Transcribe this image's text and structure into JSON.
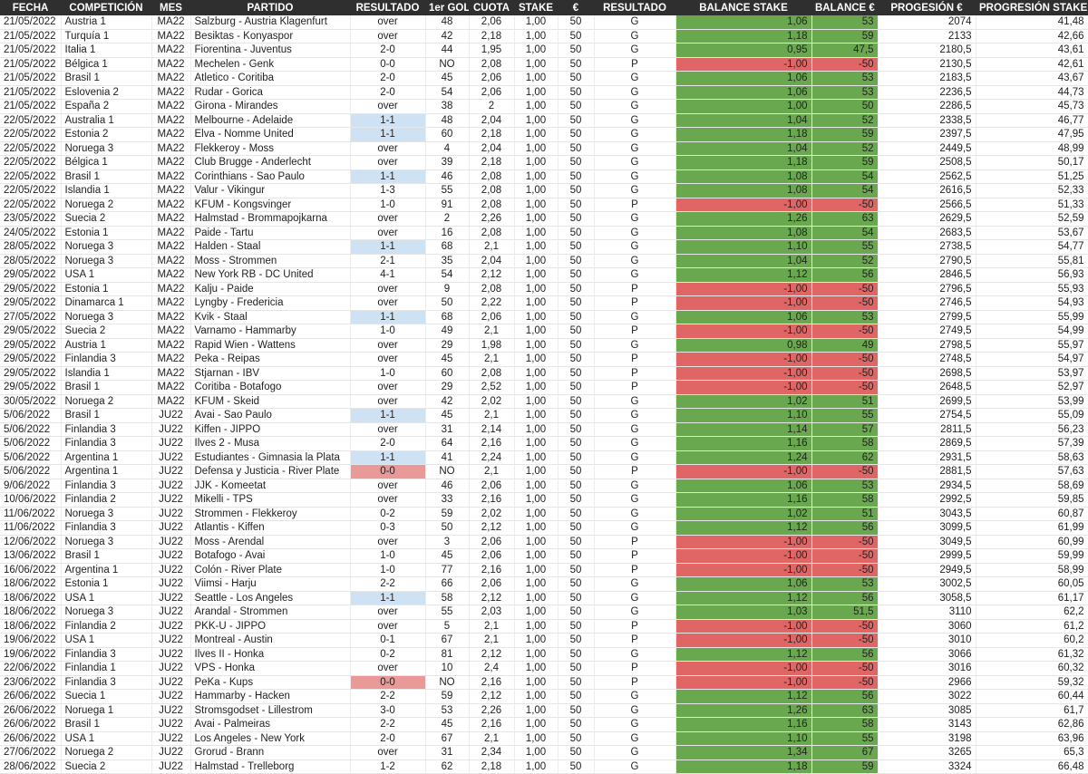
{
  "headers": [
    "FECHA",
    "COMPETICIÓN",
    "MES",
    "PARTIDO",
    "RESULTADO",
    "1er GOL",
    "CUOTA",
    "STAKE",
    "€",
    "RESULTADO",
    "BALANCE STAKE",
    "BALANCE €",
    "PROGESIÓN €",
    "PROGRESIÓN STAKE"
  ],
  "colors": {
    "header_bg": "#2f2f2f",
    "win": "#6aa84f",
    "loss": "#e06666",
    "score_blue": "#cfe2f3",
    "score_red": "#ea9999"
  },
  "rows": [
    [
      "21/05/2022",
      "Austria 1",
      "MA22",
      "Salzburg - Austria Klagenfurt",
      "over",
      "48",
      "2,06",
      "1,00",
      "50",
      "G",
      "1,06",
      "53",
      "2074",
      "41,48",
      ""
    ],
    [
      "21/05/2022",
      "Turquía 1",
      "MA22",
      "Besiktas - Konyaspor",
      "over",
      "42",
      "2,18",
      "1,00",
      "50",
      "G",
      "1,18",
      "59",
      "2133",
      "42,66",
      ""
    ],
    [
      "21/05/2022",
      "Italia 1",
      "MA22",
      "Fiorentina - Juventus",
      "2-0",
      "44",
      "1,95",
      "1,00",
      "50",
      "G",
      "0,95",
      "47,5",
      "2180,5",
      "43,61",
      ""
    ],
    [
      "21/05/2022",
      "Bélgica 1",
      "MA22",
      "Mechelen - Genk",
      "0-0",
      "NO",
      "2,08",
      "1,00",
      "50",
      "P",
      "-1,00",
      "-50",
      "2130,5",
      "42,61",
      ""
    ],
    [
      "21/05/2022",
      "Brasil 1",
      "MA22",
      "Atletico - Coritiba",
      "2-0",
      "45",
      "2,06",
      "1,00",
      "50",
      "G",
      "1,06",
      "53",
      "2183,5",
      "43,67",
      ""
    ],
    [
      "21/05/2022",
      "Eslovenia 2",
      "MA22",
      "Rudar - Gorica",
      "2-0",
      "54",
      "2,06",
      "1,00",
      "50",
      "G",
      "1,06",
      "53",
      "2236,5",
      "44,73",
      ""
    ],
    [
      "21/05/2022",
      "España 2",
      "MA22",
      "Girona - Mirandes",
      "over",
      "38",
      "2",
      "1,00",
      "50",
      "G",
      "1,00",
      "50",
      "2286,5",
      "45,73",
      ""
    ],
    [
      "22/05/2022",
      "Australia 1",
      "MA22",
      "Melbourne - Adelaide",
      "1-1",
      "48",
      "2,04",
      "1,00",
      "50",
      "G",
      "1,04",
      "52",
      "2338,5",
      "46,77",
      "b"
    ],
    [
      "22/05/2022",
      "Estonia 2",
      "MA22",
      "Elva - Nomme United",
      "1-1",
      "60",
      "2,18",
      "1,00",
      "50",
      "G",
      "1,18",
      "59",
      "2397,5",
      "47,95",
      "b"
    ],
    [
      "22/05/2022",
      "Noruega 3",
      "MA22",
      "Flekkeroy - Moss",
      "over",
      "4",
      "2,04",
      "1,00",
      "50",
      "G",
      "1,04",
      "52",
      "2449,5",
      "48,99",
      ""
    ],
    [
      "22/05/2022",
      "Bélgica 1",
      "MA22",
      "Club Brugge - Anderlecht",
      "over",
      "39",
      "2,18",
      "1,00",
      "50",
      "G",
      "1,18",
      "59",
      "2508,5",
      "50,17",
      ""
    ],
    [
      "22/05/2022",
      "Brasil 1",
      "MA22",
      "Corinthians - Sao Paulo",
      "1-1",
      "46",
      "2,08",
      "1,00",
      "50",
      "G",
      "1,08",
      "54",
      "2562,5",
      "51,25",
      "b"
    ],
    [
      "22/05/2022",
      "Islandia 1",
      "MA22",
      "Valur - Vikingur",
      "1-3",
      "55",
      "2,08",
      "1,00",
      "50",
      "G",
      "1,08",
      "54",
      "2616,5",
      "52,33",
      ""
    ],
    [
      "22/05/2022",
      "Noruega 2",
      "MA22",
      "KFUM - Kongsvinger",
      "1-0",
      "91",
      "2,08",
      "1,00",
      "50",
      "P",
      "-1,00",
      "-50",
      "2566,5",
      "51,33",
      ""
    ],
    [
      "23/05/2022",
      "Suecia 2",
      "MA22",
      "Halmstad - Brommapojkarna",
      "over",
      "2",
      "2,26",
      "1,00",
      "50",
      "G",
      "1,26",
      "63",
      "2629,5",
      "52,59",
      ""
    ],
    [
      "24/05/2022",
      "Estonia 1",
      "MA22",
      "Paide - Tartu",
      "over",
      "16",
      "2,08",
      "1,00",
      "50",
      "G",
      "1,08",
      "54",
      "2683,5",
      "53,67",
      ""
    ],
    [
      "28/05/2022",
      "Noruega 3",
      "MA22",
      "Halden - Staal",
      "1-1",
      "68",
      "2,1",
      "1,00",
      "50",
      "G",
      "1,10",
      "55",
      "2738,5",
      "54,77",
      "b"
    ],
    [
      "28/05/2022",
      "Noruega 3",
      "MA22",
      "Moss - Strommen",
      "2-1",
      "35",
      "2,04",
      "1,00",
      "50",
      "G",
      "1,04",
      "52",
      "2790,5",
      "55,81",
      ""
    ],
    [
      "29/05/2022",
      "USA 1",
      "MA22",
      "New York RB - DC United",
      "4-1",
      "54",
      "2,12",
      "1,00",
      "50",
      "G",
      "1,12",
      "56",
      "2846,5",
      "56,93",
      ""
    ],
    [
      "29/05/2022",
      "Estonia 1",
      "MA22",
      "Kalju - Paide",
      "over",
      "9",
      "2,08",
      "1,00",
      "50",
      "P",
      "-1,00",
      "-50",
      "2796,5",
      "55,93",
      ""
    ],
    [
      "29/05/2022",
      "Dinamarca 1",
      "MA22",
      "Lyngby - Fredericia",
      "over",
      "50",
      "2,22",
      "1,00",
      "50",
      "P",
      "-1,00",
      "-50",
      "2746,5",
      "54,93",
      ""
    ],
    [
      "27/05/2022",
      "Noruega 3",
      "MA22",
      "Kvik - Staal",
      "1-1",
      "68",
      "2,06",
      "1,00",
      "50",
      "G",
      "1,06",
      "53",
      "2799,5",
      "55,99",
      "b"
    ],
    [
      "29/05/2022",
      "Suecia 2",
      "MA22",
      "Varnamo - Hammarby",
      "1-0",
      "49",
      "2,1",
      "1,00",
      "50",
      "P",
      "-1,00",
      "-50",
      "2749,5",
      "54,99",
      ""
    ],
    [
      "29/05/2022",
      "Austria 1",
      "MA22",
      "Rapid Wien - Wattens",
      "over",
      "29",
      "1,98",
      "1,00",
      "50",
      "G",
      "0,98",
      "49",
      "2798,5",
      "55,97",
      ""
    ],
    [
      "29/05/2022",
      "Finlandia 3",
      "MA22",
      "Peka - Reipas",
      "over",
      "45",
      "2,1",
      "1,00",
      "50",
      "P",
      "-1,00",
      "-50",
      "2748,5",
      "54,97",
      ""
    ],
    [
      "29/05/2022",
      "Islandia 1",
      "MA22",
      "Stjarnan - IBV",
      "1-0",
      "60",
      "2,08",
      "1,00",
      "50",
      "P",
      "-1,00",
      "-50",
      "2698,5",
      "53,97",
      ""
    ],
    [
      "29/05/2022",
      "Brasil 1",
      "MA22",
      "Coritiba - Botafogo",
      "over",
      "29",
      "2,52",
      "1,00",
      "50",
      "P",
      "-1,00",
      "-50",
      "2648,5",
      "52,97",
      ""
    ],
    [
      "30/05/2022",
      "Noruega 2",
      "MA22",
      "KFUM - Skeid",
      "over",
      "42",
      "2,02",
      "1,00",
      "50",
      "G",
      "1,02",
      "51",
      "2699,5",
      "53,99",
      ""
    ],
    [
      "5/06/2022",
      "Brasil 1",
      "JU22",
      "Avai - Sao Paulo",
      "1-1",
      "45",
      "2,1",
      "1,00",
      "50",
      "G",
      "1,10",
      "55",
      "2754,5",
      "55,09",
      "b"
    ],
    [
      "5/06/2022",
      "Finlandia 3",
      "JU22",
      "Kiffen - JIPPO",
      "over",
      "31",
      "2,14",
      "1,00",
      "50",
      "G",
      "1,14",
      "57",
      "2811,5",
      "56,23",
      ""
    ],
    [
      "5/06/2022",
      "Finlandia 3",
      "JU22",
      "Ilves 2 - Musa",
      "2-0",
      "64",
      "2,16",
      "1,00",
      "50",
      "G",
      "1,16",
      "58",
      "2869,5",
      "57,39",
      ""
    ],
    [
      "5/06/2022",
      "Argentina 1",
      "JU22",
      "Estudiantes - Gimnasia la Plata",
      "1-1",
      "41",
      "2,24",
      "1,00",
      "50",
      "G",
      "1,24",
      "62",
      "2931,5",
      "58,63",
      "b"
    ],
    [
      "5/06/2022",
      "Argentina 1",
      "JU22",
      "Defensa y Justicia - River Plate",
      "0-0",
      "NO",
      "2,1",
      "1,00",
      "50",
      "P",
      "-1,00",
      "-50",
      "2881,5",
      "57,63",
      "r"
    ],
    [
      "9/06/2022",
      "Finlandia 3",
      "JU22",
      "JJK - Komeetat",
      "over",
      "46",
      "2,06",
      "1,00",
      "50",
      "G",
      "1,06",
      "53",
      "2934,5",
      "58,69",
      ""
    ],
    [
      "10/06/2022",
      "Finlandia 2",
      "JU22",
      "Mikelli - TPS",
      "over",
      "33",
      "2,16",
      "1,00",
      "50",
      "G",
      "1,16",
      "58",
      "2992,5",
      "59,85",
      ""
    ],
    [
      "11/06/2022",
      "Noruega 3",
      "JU22",
      "Strommen - Flekkeroy",
      "0-2",
      "59",
      "2,02",
      "1,00",
      "50",
      "G",
      "1,02",
      "51",
      "3043,5",
      "60,87",
      ""
    ],
    [
      "11/06/2022",
      "Finlandia 3",
      "JU22",
      "Atlantis - Kiffen",
      "0-3",
      "50",
      "2,12",
      "1,00",
      "50",
      "G",
      "1,12",
      "56",
      "3099,5",
      "61,99",
      ""
    ],
    [
      "12/06/2022",
      "Noruega 3",
      "JU22",
      "Moss - Arendal",
      "over",
      "3",
      "2,06",
      "1,00",
      "50",
      "P",
      "-1,00",
      "-50",
      "3049,5",
      "60,99",
      ""
    ],
    [
      "13/06/2022",
      "Brasil 1",
      "JU22",
      "Botafogo - Avai",
      "1-0",
      "45",
      "2,06",
      "1,00",
      "50",
      "P",
      "-1,00",
      "-50",
      "2999,5",
      "59,99",
      ""
    ],
    [
      "16/06/2022",
      "Argentina 1",
      "JU22",
      "Colón - River Plate",
      "1-0",
      "77",
      "2,16",
      "1,00",
      "50",
      "P",
      "-1,00",
      "-50",
      "2949,5",
      "58,99",
      ""
    ],
    [
      "18/06/2022",
      "Estonia 1",
      "JU22",
      "Viimsi - Harju",
      "2-2",
      "66",
      "2,06",
      "1,00",
      "50",
      "G",
      "1,06",
      "53",
      "3002,5",
      "60,05",
      ""
    ],
    [
      "18/06/2022",
      "USA 1",
      "JU22",
      "Seattle - Los Angeles",
      "1-1",
      "58",
      "2,12",
      "1,00",
      "50",
      "G",
      "1,12",
      "56",
      "3058,5",
      "61,17",
      "b"
    ],
    [
      "18/06/2022",
      "Noruega 3",
      "JU22",
      "Arandal - Strommen",
      "over",
      "55",
      "2,03",
      "1,00",
      "50",
      "G",
      "1,03",
      "51,5",
      "3110",
      "62,2",
      ""
    ],
    [
      "18/06/2022",
      "Finlandia 2",
      "JU22",
      "PKK-U - JIPPO",
      "over",
      "5",
      "2,1",
      "1,00",
      "50",
      "P",
      "-1,00",
      "-50",
      "3060",
      "61,2",
      ""
    ],
    [
      "19/06/2022",
      "USA 1",
      "JU22",
      "Montreal - Austin",
      "0-1",
      "67",
      "2,1",
      "1,00",
      "50",
      "P",
      "-1,00",
      "-50",
      "3010",
      "60,2",
      ""
    ],
    [
      "19/06/2022",
      "Finlandia 3",
      "JU22",
      "Ilves II - Honka",
      "0-2",
      "81",
      "2,12",
      "1,00",
      "50",
      "G",
      "1,12",
      "56",
      "3066",
      "61,32",
      ""
    ],
    [
      "22/06/2022",
      "Finlandia 1",
      "JU22",
      "VPS - Honka",
      "over",
      "10",
      "2,4",
      "1,00",
      "50",
      "P",
      "-1,00",
      "-50",
      "3016",
      "60,32",
      ""
    ],
    [
      "23/06/2022",
      "Finlandia 3",
      "JU22",
      "PeKa - Kups",
      "0-0",
      "NO",
      "2,16",
      "1,00",
      "50",
      "P",
      "-1,00",
      "-50",
      "2966",
      "59,32",
      "r"
    ],
    [
      "26/06/2022",
      "Suecia 1",
      "JU22",
      "Hammarby - Hacken",
      "2-2",
      "59",
      "2,12",
      "1,00",
      "50",
      "G",
      "1,12",
      "56",
      "3022",
      "60,44",
      ""
    ],
    [
      "26/06/2022",
      "Noruega 1",
      "JU22",
      "Stromsgodset - Lillestrom",
      "3-0",
      "53",
      "2,26",
      "1,00",
      "50",
      "G",
      "1,26",
      "63",
      "3085",
      "61,7",
      ""
    ],
    [
      "26/06/2022",
      "Brasil 1",
      "JU22",
      "Avai - Palmeiras",
      "2-2",
      "45",
      "2,16",
      "1,00",
      "50",
      "G",
      "1,16",
      "58",
      "3143",
      "62,86",
      ""
    ],
    [
      "26/06/2022",
      "USA 1",
      "JU22",
      "Los Angeles - New York",
      "2-0",
      "67",
      "2,1",
      "1,00",
      "50",
      "G",
      "1,10",
      "55",
      "3198",
      "63,96",
      ""
    ],
    [
      "27/06/2022",
      "Noruega 2",
      "JU22",
      "Grorud - Brann",
      "over",
      "31",
      "2,34",
      "1,00",
      "50",
      "G",
      "1,34",
      "67",
      "3265",
      "65,3",
      ""
    ],
    [
      "28/06/2022",
      "Suecia 2",
      "JU22",
      "Halmstad - Trelleborg",
      "1-2",
      "62",
      "2,18",
      "1,00",
      "50",
      "G",
      "1,18",
      "59",
      "3324",
      "66,48",
      ""
    ]
  ]
}
